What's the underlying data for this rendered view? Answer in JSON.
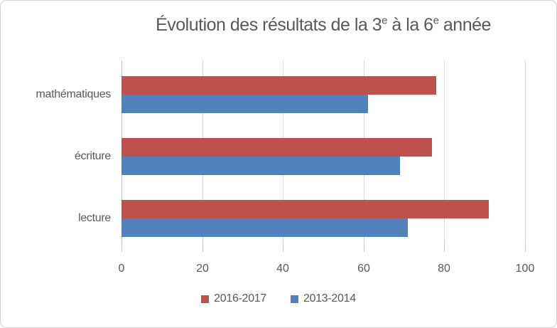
{
  "chart_data": {
    "type": "bar",
    "orientation": "horizontal",
    "title": "Évolution des résultats de la 3e à la 6e année",
    "title_parts": [
      {
        "t": "Évolution des résultats de la 3"
      },
      {
        "t": "e",
        "sup": true
      },
      {
        "t": " à la 6"
      },
      {
        "t": "e",
        "sup": true
      },
      {
        "t": " année"
      }
    ],
    "categories": [
      "mathématiques",
      "écriture",
      "lecture"
    ],
    "series": [
      {
        "name": "2016-2017",
        "color": "#C0504D",
        "values": [
          78,
          77,
          91
        ]
      },
      {
        "name": "2013-2014",
        "color": "#4F81BD",
        "values": [
          61,
          69,
          71
        ]
      }
    ],
    "x_axis": {
      "min": 0,
      "max": 100,
      "ticks": [
        0,
        20,
        40,
        60,
        80,
        100
      ]
    },
    "grid": true,
    "legend_position": "bottom",
    "colors": {
      "text": "#595959",
      "gridline": "#d9d9d9",
      "axis_line": "#bfbfbf",
      "chart_border": "#d2d2d2",
      "background": "#ffffff"
    }
  }
}
